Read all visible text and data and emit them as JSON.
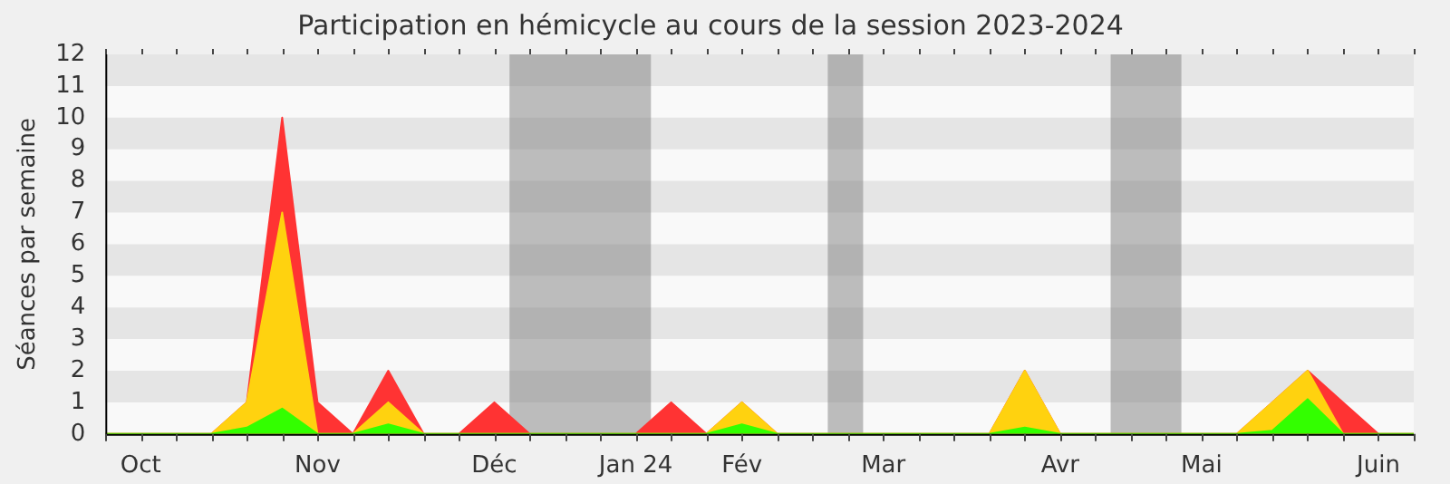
{
  "chart_data": {
    "type": "area",
    "title": "Participation en hémicycle au cours de la session 2023-2024",
    "ylabel": "Séances par semaine",
    "x": [
      "2023-09-29",
      "2023-10-06",
      "2023-10-13",
      "2023-10-20",
      "2023-10-27",
      "2023-11-03",
      "2023-11-10",
      "2023-11-17",
      "2023-11-24",
      "2023-12-01",
      "2023-12-08",
      "2023-12-15",
      "2023-12-22",
      "2023-12-29",
      "2024-01-05",
      "2024-01-12",
      "2024-01-19",
      "2024-01-26",
      "2024-02-02",
      "2024-02-09",
      "2024-02-16",
      "2024-02-23",
      "2024-03-01",
      "2024-03-08",
      "2024-03-15",
      "2024-03-22",
      "2024-03-29",
      "2024-04-05",
      "2024-04-12",
      "2024-04-19",
      "2024-04-26",
      "2024-05-03",
      "2024-05-10",
      "2024-05-17",
      "2024-05-24",
      "2024-05-31",
      "2024-06-07",
      "2024-06-14"
    ],
    "series": [
      {
        "color": "#ff3333",
        "values": [
          0,
          0,
          0,
          0,
          1,
          10,
          1,
          0,
          2,
          0,
          0,
          1,
          0,
          0,
          0,
          0,
          1,
          0,
          1,
          0,
          0,
          0,
          0,
          0,
          0,
          0,
          2,
          0,
          0,
          0,
          0,
          0,
          0,
          1,
          2,
          1,
          0,
          0
        ]
      },
      {
        "color": "#ffd20f",
        "values": [
          0,
          0,
          0,
          0,
          1,
          7,
          0,
          0,
          1,
          0,
          0,
          0,
          0,
          0,
          0,
          0,
          0,
          0,
          1,
          0,
          0,
          0,
          0,
          0,
          0,
          0,
          2,
          0,
          0,
          0,
          0,
          0,
          0,
          1,
          2,
          0,
          0,
          0
        ]
      },
      {
        "color": "#33ff00",
        "values": [
          0,
          0,
          0,
          0,
          0.2,
          0.8,
          0,
          0,
          0.3,
          0,
          0,
          0,
          0,
          0,
          0,
          0,
          0,
          0,
          0.3,
          0,
          0,
          0,
          0,
          0,
          0,
          0,
          0.2,
          0,
          0,
          0,
          0,
          0,
          0,
          0.1,
          1.1,
          0,
          0,
          0
        ]
      }
    ],
    "xlim": [
      "2023-09-29",
      "2024-06-14"
    ],
    "xticks": [
      {
        "value": "2023-09-29",
        "label": null
      },
      {
        "value": "2023-10-06",
        "label": "Oct"
      },
      {
        "value": "2023-10-13",
        "label": null
      },
      {
        "value": "2023-10-20",
        "label": null
      },
      {
        "value": "2023-10-27",
        "label": null
      },
      {
        "value": "2023-11-03",
        "label": null
      },
      {
        "value": "2023-11-10",
        "label": "Nov"
      },
      {
        "value": "2023-11-17",
        "label": null
      },
      {
        "value": "2023-11-24",
        "label": null
      },
      {
        "value": "2023-12-01",
        "label": null
      },
      {
        "value": "2023-12-08",
        "label": null
      },
      {
        "value": "2023-12-15",
        "label": "Déc"
      },
      {
        "value": "2023-12-22",
        "label": null
      },
      {
        "value": "2023-12-29",
        "label": null
      },
      {
        "value": "2024-01-05",
        "label": null
      },
      {
        "value": "2024-01-12",
        "label": "Jan 24"
      },
      {
        "value": "2024-01-19",
        "label": null
      },
      {
        "value": "2024-01-26",
        "label": null
      },
      {
        "value": "2024-02-02",
        "label": "Fév"
      },
      {
        "value": "2024-02-09",
        "label": null
      },
      {
        "value": "2024-02-16",
        "label": null
      },
      {
        "value": "2024-02-23",
        "label": null
      },
      {
        "value": "2024-03-01",
        "label": "Mar"
      },
      {
        "value": "2024-03-08",
        "label": null
      },
      {
        "value": "2024-03-15",
        "label": null
      },
      {
        "value": "2024-03-22",
        "label": null
      },
      {
        "value": "2024-03-29",
        "label": null
      },
      {
        "value": "2024-04-05",
        "label": "Avr"
      },
      {
        "value": "2024-04-12",
        "label": null
      },
      {
        "value": "2024-04-19",
        "label": null
      },
      {
        "value": "2024-04-26",
        "label": null
      },
      {
        "value": "2024-05-03",
        "label": "Mai"
      },
      {
        "value": "2024-05-10",
        "label": null
      },
      {
        "value": "2024-05-17",
        "label": null
      },
      {
        "value": "2024-05-24",
        "label": null
      },
      {
        "value": "2024-05-31",
        "label": null
      },
      {
        "value": "2024-06-07",
        "label": "Juin"
      },
      {
        "value": "2024-06-14",
        "label": null
      }
    ],
    "ylim": [
      0,
      12
    ],
    "yticks": [
      0,
      1,
      2,
      3,
      4,
      5,
      6,
      7,
      8,
      9,
      10,
      11,
      12
    ],
    "bands": [
      {
        "axis": "x",
        "from": "2023-12-18",
        "to": "2024-01-15",
        "color": "#808080"
      },
      {
        "axis": "x",
        "from": "2024-02-19",
        "to": "2024-02-26",
        "color": "#808080"
      },
      {
        "axis": "x",
        "from": "2024-04-15",
        "to": "2024-04-29",
        "color": "#808080"
      }
    ],
    "legend": false,
    "marker": "none",
    "line_style": "solid"
  }
}
